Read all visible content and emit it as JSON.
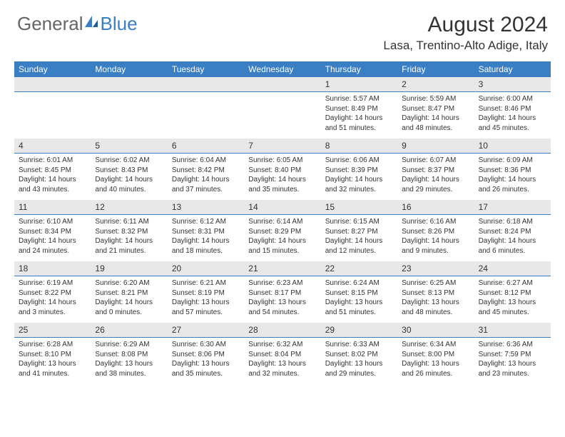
{
  "logo": {
    "text1": "General",
    "text2": "Blue"
  },
  "title": "August 2024",
  "location": "Lasa, Trentino-Alto Adige, Italy",
  "colors": {
    "header_bg": "#3a7fc4",
    "numrow_bg": "#e8e8e8",
    "text": "#333333",
    "logo_gray": "#666666",
    "logo_blue": "#3a7fc4"
  },
  "day_headers": [
    "Sunday",
    "Monday",
    "Tuesday",
    "Wednesday",
    "Thursday",
    "Friday",
    "Saturday"
  ],
  "weeks": [
    {
      "nums": [
        "",
        "",
        "",
        "",
        "1",
        "2",
        "3"
      ],
      "cells": [
        null,
        null,
        null,
        null,
        {
          "sr": "Sunrise: 5:57 AM",
          "ss": "Sunset: 8:49 PM",
          "d1": "Daylight: 14 hours",
          "d2": "and 51 minutes."
        },
        {
          "sr": "Sunrise: 5:59 AM",
          "ss": "Sunset: 8:47 PM",
          "d1": "Daylight: 14 hours",
          "d2": "and 48 minutes."
        },
        {
          "sr": "Sunrise: 6:00 AM",
          "ss": "Sunset: 8:46 PM",
          "d1": "Daylight: 14 hours",
          "d2": "and 45 minutes."
        }
      ]
    },
    {
      "nums": [
        "4",
        "5",
        "6",
        "7",
        "8",
        "9",
        "10"
      ],
      "cells": [
        {
          "sr": "Sunrise: 6:01 AM",
          "ss": "Sunset: 8:45 PM",
          "d1": "Daylight: 14 hours",
          "d2": "and 43 minutes."
        },
        {
          "sr": "Sunrise: 6:02 AM",
          "ss": "Sunset: 8:43 PM",
          "d1": "Daylight: 14 hours",
          "d2": "and 40 minutes."
        },
        {
          "sr": "Sunrise: 6:04 AM",
          "ss": "Sunset: 8:42 PM",
          "d1": "Daylight: 14 hours",
          "d2": "and 37 minutes."
        },
        {
          "sr": "Sunrise: 6:05 AM",
          "ss": "Sunset: 8:40 PM",
          "d1": "Daylight: 14 hours",
          "d2": "and 35 minutes."
        },
        {
          "sr": "Sunrise: 6:06 AM",
          "ss": "Sunset: 8:39 PM",
          "d1": "Daylight: 14 hours",
          "d2": "and 32 minutes."
        },
        {
          "sr": "Sunrise: 6:07 AM",
          "ss": "Sunset: 8:37 PM",
          "d1": "Daylight: 14 hours",
          "d2": "and 29 minutes."
        },
        {
          "sr": "Sunrise: 6:09 AM",
          "ss": "Sunset: 8:36 PM",
          "d1": "Daylight: 14 hours",
          "d2": "and 26 minutes."
        }
      ]
    },
    {
      "nums": [
        "11",
        "12",
        "13",
        "14",
        "15",
        "16",
        "17"
      ],
      "cells": [
        {
          "sr": "Sunrise: 6:10 AM",
          "ss": "Sunset: 8:34 PM",
          "d1": "Daylight: 14 hours",
          "d2": "and 24 minutes."
        },
        {
          "sr": "Sunrise: 6:11 AM",
          "ss": "Sunset: 8:32 PM",
          "d1": "Daylight: 14 hours",
          "d2": "and 21 minutes."
        },
        {
          "sr": "Sunrise: 6:12 AM",
          "ss": "Sunset: 8:31 PM",
          "d1": "Daylight: 14 hours",
          "d2": "and 18 minutes."
        },
        {
          "sr": "Sunrise: 6:14 AM",
          "ss": "Sunset: 8:29 PM",
          "d1": "Daylight: 14 hours",
          "d2": "and 15 minutes."
        },
        {
          "sr": "Sunrise: 6:15 AM",
          "ss": "Sunset: 8:27 PM",
          "d1": "Daylight: 14 hours",
          "d2": "and 12 minutes."
        },
        {
          "sr": "Sunrise: 6:16 AM",
          "ss": "Sunset: 8:26 PM",
          "d1": "Daylight: 14 hours",
          "d2": "and 9 minutes."
        },
        {
          "sr": "Sunrise: 6:18 AM",
          "ss": "Sunset: 8:24 PM",
          "d1": "Daylight: 14 hours",
          "d2": "and 6 minutes."
        }
      ]
    },
    {
      "nums": [
        "18",
        "19",
        "20",
        "21",
        "22",
        "23",
        "24"
      ],
      "cells": [
        {
          "sr": "Sunrise: 6:19 AM",
          "ss": "Sunset: 8:22 PM",
          "d1": "Daylight: 14 hours",
          "d2": "and 3 minutes."
        },
        {
          "sr": "Sunrise: 6:20 AM",
          "ss": "Sunset: 8:21 PM",
          "d1": "Daylight: 14 hours",
          "d2": "and 0 minutes."
        },
        {
          "sr": "Sunrise: 6:21 AM",
          "ss": "Sunset: 8:19 PM",
          "d1": "Daylight: 13 hours",
          "d2": "and 57 minutes."
        },
        {
          "sr": "Sunrise: 6:23 AM",
          "ss": "Sunset: 8:17 PM",
          "d1": "Daylight: 13 hours",
          "d2": "and 54 minutes."
        },
        {
          "sr": "Sunrise: 6:24 AM",
          "ss": "Sunset: 8:15 PM",
          "d1": "Daylight: 13 hours",
          "d2": "and 51 minutes."
        },
        {
          "sr": "Sunrise: 6:25 AM",
          "ss": "Sunset: 8:13 PM",
          "d1": "Daylight: 13 hours",
          "d2": "and 48 minutes."
        },
        {
          "sr": "Sunrise: 6:27 AM",
          "ss": "Sunset: 8:12 PM",
          "d1": "Daylight: 13 hours",
          "d2": "and 45 minutes."
        }
      ]
    },
    {
      "nums": [
        "25",
        "26",
        "27",
        "28",
        "29",
        "30",
        "31"
      ],
      "cells": [
        {
          "sr": "Sunrise: 6:28 AM",
          "ss": "Sunset: 8:10 PM",
          "d1": "Daylight: 13 hours",
          "d2": "and 41 minutes."
        },
        {
          "sr": "Sunrise: 6:29 AM",
          "ss": "Sunset: 8:08 PM",
          "d1": "Daylight: 13 hours",
          "d2": "and 38 minutes."
        },
        {
          "sr": "Sunrise: 6:30 AM",
          "ss": "Sunset: 8:06 PM",
          "d1": "Daylight: 13 hours",
          "d2": "and 35 minutes."
        },
        {
          "sr": "Sunrise: 6:32 AM",
          "ss": "Sunset: 8:04 PM",
          "d1": "Daylight: 13 hours",
          "d2": "and 32 minutes."
        },
        {
          "sr": "Sunrise: 6:33 AM",
          "ss": "Sunset: 8:02 PM",
          "d1": "Daylight: 13 hours",
          "d2": "and 29 minutes."
        },
        {
          "sr": "Sunrise: 6:34 AM",
          "ss": "Sunset: 8:00 PM",
          "d1": "Daylight: 13 hours",
          "d2": "and 26 minutes."
        },
        {
          "sr": "Sunrise: 6:36 AM",
          "ss": "Sunset: 7:59 PM",
          "d1": "Daylight: 13 hours",
          "d2": "and 23 minutes."
        }
      ]
    }
  ]
}
